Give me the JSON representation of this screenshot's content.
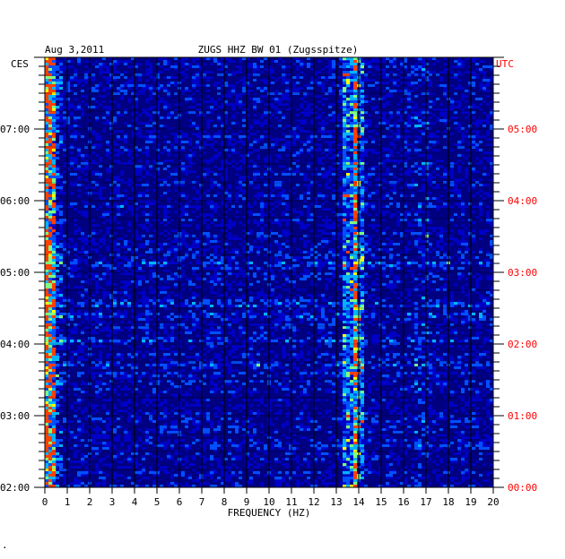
{
  "chart_data": {
    "type": "heatmap",
    "date": "Aug 3,2011",
    "station": "ZUGS HHZ BW 01 (Zugsspitze)",
    "xlabel": "FREQUENCY (HZ)",
    "x_ticks": [
      "0",
      "1",
      "2",
      "3",
      "4",
      "5",
      "6",
      "7",
      "8",
      "9",
      "10",
      "11",
      "12",
      "13",
      "14",
      "15",
      "16",
      "17",
      "18",
      "19",
      "20"
    ],
    "xlim": [
      0,
      20
    ],
    "left_axis_label": "CES",
    "right_axis_label": "UTC",
    "left_ticks": [
      "02:00",
      "03:00",
      "04:00",
      "05:00",
      "06:00",
      "07:00"
    ],
    "right_ticks": [
      "00:00",
      "01:00",
      "02:00",
      "03:00",
      "04:00",
      "05:00"
    ],
    "time_range_hours_utc": [
      0,
      6
    ],
    "grid": true,
    "colors": {
      "background": "#0000c8",
      "low": "#000080",
      "mid": "#00b4ff",
      "high": "#ffff00",
      "peak": "#ff4000",
      "utc_label": "#ff0000",
      "frame": "#000000"
    },
    "prominent_bands_hz": [
      0.3,
      13.6,
      14.0
    ],
    "bright_rows_utc_hours": [
      1.7,
      2.04,
      2.4,
      2.55,
      3.12,
      3.92
    ]
  },
  "footer_mark": "·"
}
